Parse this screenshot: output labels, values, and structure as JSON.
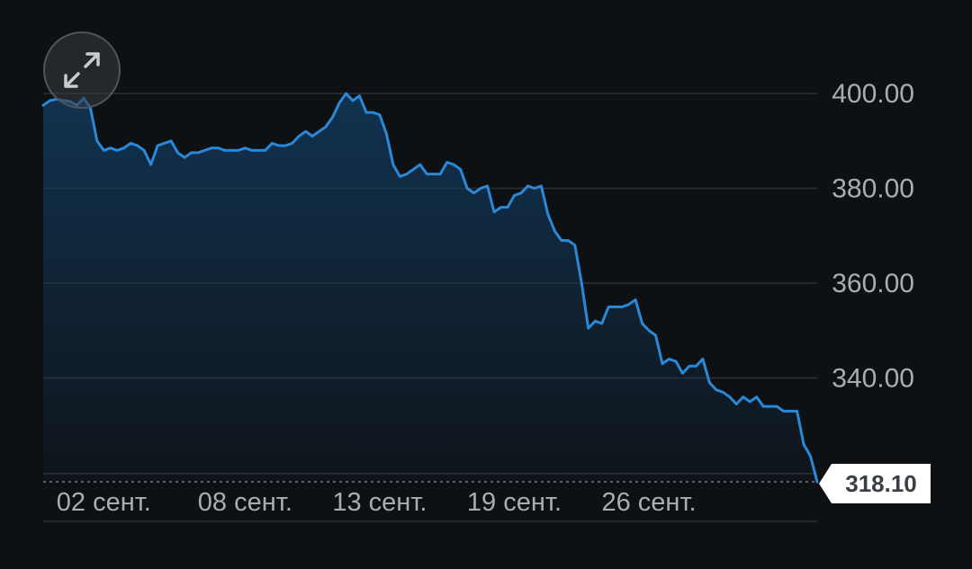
{
  "colors": {
    "background": "#0e1114",
    "line": "#2a88d6",
    "area_top": "#12385a",
    "grid": "#2c3036",
    "tick_text": "#a9adb3",
    "price_label_bg": "#ffffff",
    "price_label_text": "#3a3f46"
  },
  "controls": {
    "expand_icon": "expand-arrows-icon"
  },
  "current_price": {
    "label": "318.10",
    "value": 318.1
  },
  "chart_data": {
    "type": "area",
    "title": "",
    "xlabel": "",
    "ylabel": "",
    "ylim": [
      318.1,
      400
    ],
    "grid": true,
    "y_ticks": [
      "400.00",
      "380.00",
      "360.00",
      "340.00"
    ],
    "y_tick_values": [
      400,
      380,
      360,
      340
    ],
    "x_ticks": [
      "02 сент.",
      "08 сент.",
      "13 сент.",
      "19 сент.",
      "26 сент."
    ],
    "x_tick_index": [
      9,
      30,
      50,
      70,
      90
    ],
    "series": [
      {
        "values": [
          397.5,
          398.5,
          398.8,
          398.5,
          398.3,
          397.5,
          399.0,
          397.0,
          390.0,
          388.0,
          388.5,
          388.0,
          388.5,
          389.5,
          389.0,
          388.0,
          385.0,
          389.0,
          389.5,
          390.0,
          387.5,
          386.5,
          387.5,
          387.5,
          388.0,
          388.5,
          388.5,
          388.0,
          388.0,
          388.0,
          388.5,
          388.0,
          388.0,
          388.0,
          389.5,
          389.0,
          389.0,
          389.5,
          391.0,
          392.0,
          391.0,
          392.0,
          393.0,
          395.0,
          398.0,
          400.0,
          398.5,
          399.5,
          396.0,
          396.0,
          395.5,
          391.5,
          385.0,
          382.5,
          383.0,
          384.0,
          385.0,
          383.0,
          383.0,
          383.0,
          385.5,
          385.0,
          384.0,
          380.0,
          379.0,
          380.0,
          380.5,
          375.0,
          376.0,
          376.0,
          378.5,
          379.0,
          380.5,
          380.0,
          380.5,
          374.5,
          371.0,
          369.0,
          369.0,
          368.0,
          360.0,
          350.5,
          352.0,
          351.5,
          355.0,
          355.0,
          355.0,
          355.5,
          356.5,
          351.5,
          350.0,
          349.0,
          343.0,
          344.0,
          343.5,
          341.0,
          342.5,
          342.5,
          344.0,
          339.0,
          337.5,
          337.0,
          336.0,
          334.5,
          336.0,
          335.0,
          336.0,
          334.0,
          334.0,
          334.0,
          333.0,
          333.0,
          333.0,
          326.0,
          323.5,
          318.1
        ]
      }
    ]
  }
}
